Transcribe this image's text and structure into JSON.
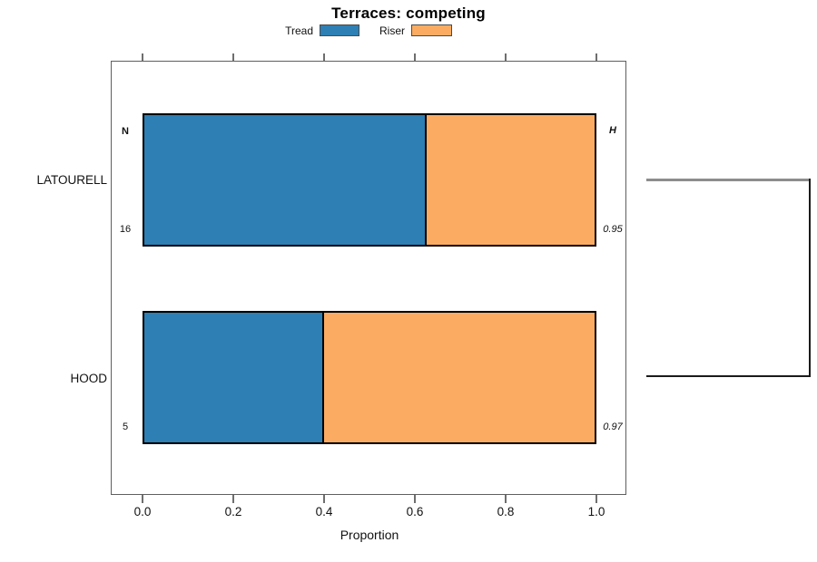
{
  "title": "Terraces: competing",
  "legend": [
    {
      "label": "Tread",
      "color": "#2D7FB4"
    },
    {
      "label": "Riser",
      "color": "#FBAC62"
    }
  ],
  "axis": {
    "label": "Proportion",
    "ticks": [
      "0.0",
      "0.2",
      "0.4",
      "0.6",
      "0.8",
      "1.0"
    ]
  },
  "columns": {
    "left_header": "N",
    "right_header": "H"
  },
  "rows": [
    {
      "name": "LATOURELL",
      "n": "16",
      "h": "0.95"
    },
    {
      "name": "HOOD",
      "n": "5",
      "h": "0.97"
    }
  ],
  "chart_data": {
    "type": "bar",
    "orientation": "horizontal",
    "stacked": true,
    "title": "Terraces: competing",
    "xlabel": "Proportion",
    "xlim": [
      0,
      1
    ],
    "xticks": [
      0.0,
      0.2,
      0.4,
      0.6,
      0.8,
      1.0
    ],
    "categories": [
      "LATOURELL",
      "HOOD"
    ],
    "series": [
      {
        "name": "Tread",
        "values": [
          0.625,
          0.4
        ],
        "color": "#2D7FB4"
      },
      {
        "name": "Riser",
        "values": [
          0.375,
          0.6
        ],
        "color": "#FBAC62"
      }
    ],
    "annotations": {
      "N": [
        16,
        5
      ],
      "H": [
        0.95,
        0.97
      ]
    },
    "legend_position": "top",
    "grid": false,
    "right_dendrogram_joins_rows": true
  }
}
